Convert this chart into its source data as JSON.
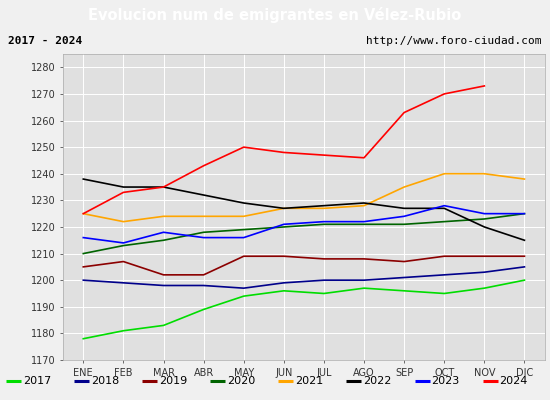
{
  "title": "Evolucion num de emigrantes en Vélez-Rubio",
  "subtitle_left": "2017 - 2024",
  "subtitle_right": "http://www.foro-ciudad.com",
  "months": [
    "ENE",
    "FEB",
    "MAR",
    "ABR",
    "MAY",
    "JUN",
    "JUL",
    "AGO",
    "SEP",
    "OCT",
    "NOV",
    "DIC"
  ],
  "ylim": [
    1170,
    1285
  ],
  "yticks": [
    1170,
    1180,
    1190,
    1200,
    1210,
    1220,
    1230,
    1240,
    1250,
    1260,
    1270,
    1280
  ],
  "series": {
    "2017": {
      "color": "#00dd00",
      "values": [
        1178,
        1181,
        1183,
        1189,
        1194,
        1196,
        1195,
        1197,
        1196,
        1195,
        1197,
        1200
      ]
    },
    "2018": {
      "color": "#00008B",
      "values": [
        1200,
        1199,
        1198,
        1198,
        1197,
        1199,
        1200,
        1200,
        1201,
        1202,
        1203,
        1205
      ]
    },
    "2019": {
      "color": "#8B0000",
      "values": [
        1205,
        1207,
        1202,
        1202,
        1209,
        1209,
        1208,
        1208,
        1207,
        1209,
        1209,
        1209
      ]
    },
    "2020": {
      "color": "#006400",
      "values": [
        1210,
        1213,
        1215,
        1218,
        1219,
        1220,
        1221,
        1221,
        1221,
        1222,
        1223,
        1225
      ]
    },
    "2021": {
      "color": "#FFA500",
      "values": [
        1225,
        1222,
        1224,
        1224,
        1224,
        1227,
        1227,
        1228,
        1235,
        1240,
        1240,
        1238
      ]
    },
    "2022": {
      "color": "#000000",
      "values": [
        1238,
        1235,
        1235,
        1232,
        1229,
        1227,
        1228,
        1229,
        1227,
        1227,
        1220,
        1215
      ]
    },
    "2023": {
      "color": "#0000FF",
      "values": [
        1216,
        1214,
        1218,
        1216,
        1216,
        1221,
        1222,
        1222,
        1224,
        1228,
        1225,
        1225
      ]
    },
    "2024": {
      "color": "#FF0000",
      "values": [
        1225,
        1233,
        1235,
        1243,
        1250,
        1248,
        1247,
        1246,
        1263,
        1270,
        1273,
        null
      ]
    }
  },
  "title_bg_color": "#4472C4",
  "title_font_color": "#FFFFFF",
  "plot_bg_color": "#E0E0E0",
  "outer_bg_color": "#F0F0F0",
  "grid_color": "#FFFFFF",
  "subtitle_box_color": "#FFFFFF"
}
